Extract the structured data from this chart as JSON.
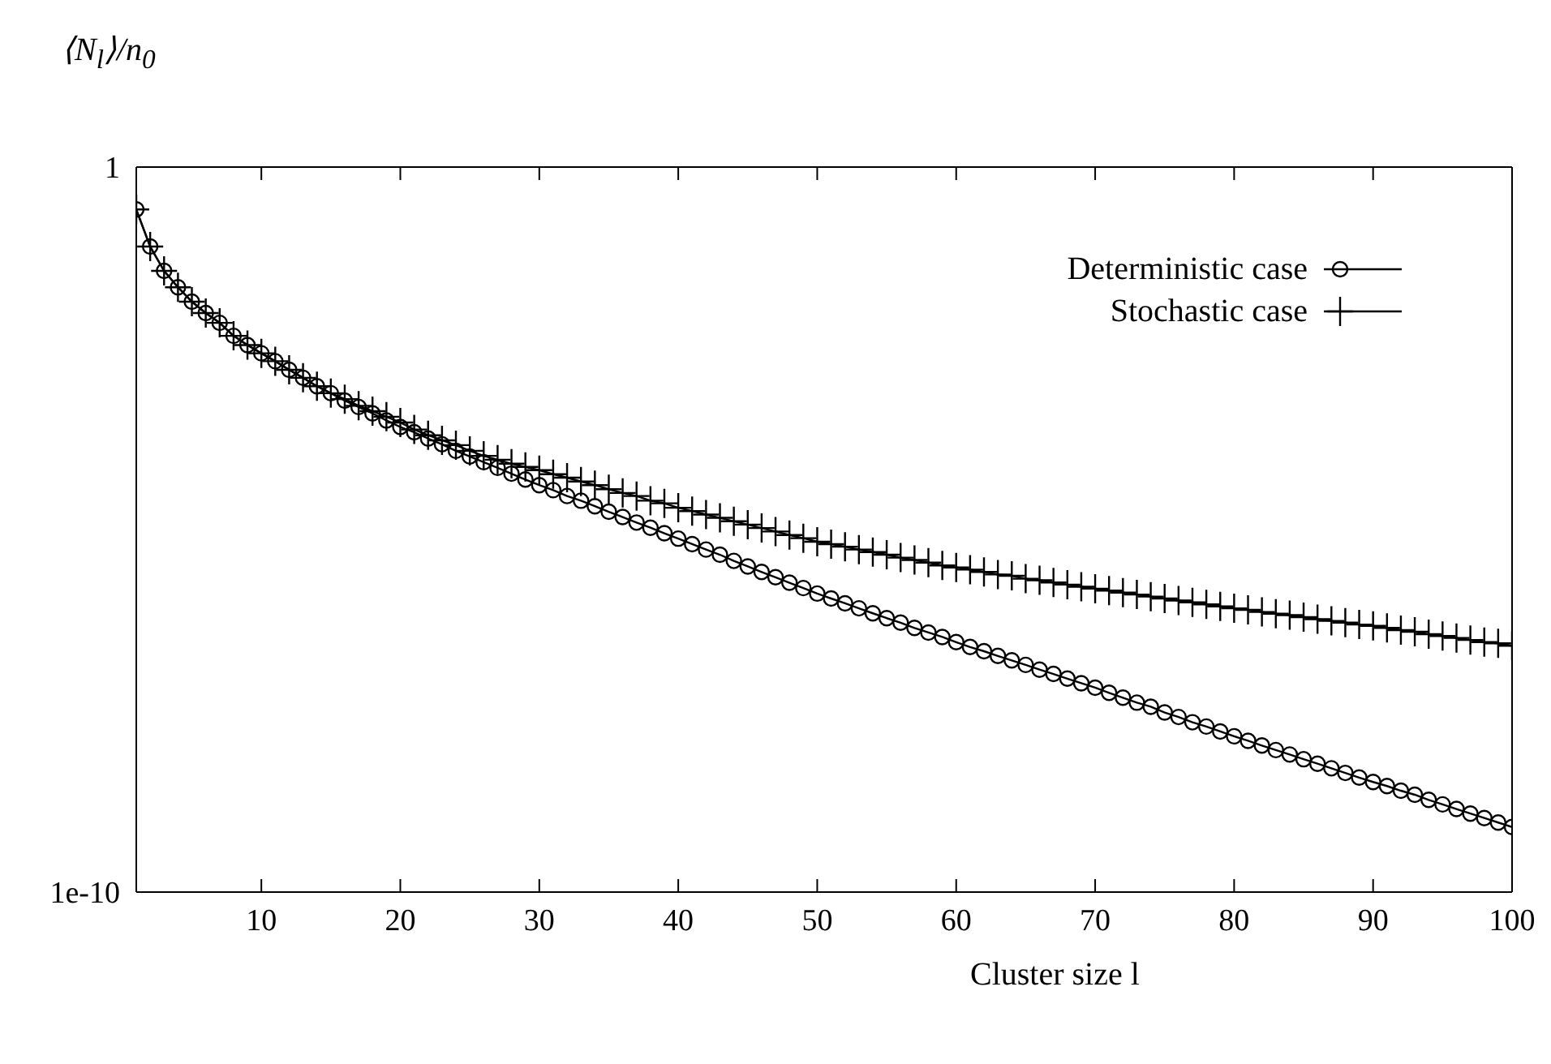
{
  "chart_data": {
    "type": "line",
    "xlabel": "Cluster size l",
    "ylabel": "⟨N$_{l}$⟩/n$_{0}$",
    "log": "y",
    "grid": false,
    "legend": "top right",
    "line_style": "solid",
    "x": [
      1,
      2,
      3,
      4,
      5,
      6,
      7,
      8,
      9,
      10,
      11,
      12,
      13,
      14,
      15,
      16,
      17,
      18,
      19,
      20,
      21,
      22,
      23,
      24,
      25,
      26,
      27,
      28,
      29,
      30,
      31,
      32,
      33,
      34,
      35,
      36,
      37,
      38,
      39,
      40,
      41,
      42,
      43,
      44,
      45,
      46,
      47,
      48,
      49,
      50,
      51,
      52,
      53,
      54,
      55,
      56,
      57,
      58,
      59,
      60,
      61,
      62,
      63,
      64,
      65,
      66,
      67,
      68,
      69,
      70,
      71,
      72,
      73,
      74,
      75,
      76,
      77,
      78,
      79,
      80,
      81,
      82,
      83,
      84,
      85,
      86,
      87,
      88,
      89,
      90,
      91,
      92,
      93,
      94,
      95,
      96,
      97,
      98,
      99,
      100
    ],
    "xlim": [
      1,
      100
    ],
    "xticks": [
      10,
      20,
      30,
      40,
      50,
      60,
      70,
      80,
      90,
      100
    ],
    "ylim": [
      1e-10,
      1
    ],
    "yticks": [
      1e-10,
      1
    ],
    "series": [
      {
        "name": "Deterministic case",
        "color": "#000000",
        "marker": "circle",
        "values": [
          0.26,
          0.08,
          0.037,
          0.022,
          0.0139,
          0.0097,
          0.0071,
          0.0047,
          0.0035,
          0.0027,
          0.0021,
          0.0016,
          0.00124,
          0.00095,
          0.00076,
          0.0006,
          0.00049,
          0.0004,
          0.00032,
          0.00026,
          0.00022,
          0.00018,
          0.00015,
          0.000122,
          0.000102,
          8.5e-05,
          7.1e-05,
          5.9e-05,
          4.9e-05,
          4.1e-05,
          3.5e-05,
          2.9e-05,
          2.5e-05,
          2.1e-05,
          1.76e-05,
          1.49e-05,
          1.25e-05,
          1.06e-05,
          8.9e-06,
          7.5e-06,
          6.3e-06,
          5.3e-06,
          4.5e-06,
          3.7e-06,
          3.1e-06,
          2.6e-06,
          2.2e-06,
          1.85e-06,
          1.56e-06,
          1.31e-06,
          1.12e-06,
          9.6e-07,
          8.2e-07,
          7e-07,
          6e-07,
          5.2e-07,
          4.4e-07,
          3.8e-07,
          3.3e-07,
          2.8e-07,
          2.4e-07,
          2.1e-07,
          1.81e-07,
          1.57e-07,
          1.36e-07,
          1.17e-07,
          1.02e-07,
          8.8e-08,
          7.6e-08,
          6.6e-08,
          5.6e-08,
          4.8e-08,
          4.1e-08,
          3.6e-08,
          3e-08,
          2.6e-08,
          2.2e-08,
          1.92e-08,
          1.64e-08,
          1.41e-08,
          1.22e-08,
          1.05e-08,
          9.1e-09,
          7.9e-09,
          6.8e-09,
          5.9e-09,
          5.1e-09,
          4.4e-09,
          3.8e-09,
          3.3e-09,
          2.9e-09,
          2.5e-09,
          2.2e-09,
          1.87e-09,
          1.62e-09,
          1.4e-09,
          1.21e-09,
          1.05e-09,
          9.1e-10,
          7.9e-10
        ]
      },
      {
        "name": "Stochastic case",
        "color": "#000000",
        "marker": "cross",
        "values": [
          0.26,
          0.08,
          0.037,
          0.022,
          0.0139,
          0.0097,
          0.0071,
          0.0047,
          0.0035,
          0.0027,
          0.0021,
          0.0016,
          0.00124,
          0.00095,
          0.00076,
          0.00063,
          0.00051,
          0.00043,
          0.00036,
          0.0003,
          0.00024,
          0.0002,
          0.00017,
          0.000146,
          0.000122,
          0.000104,
          9.2e-05,
          8.1e-05,
          7.3e-05,
          6.6e-05,
          5.8e-05,
          5.2e-05,
          4.6e-05,
          4.1e-05,
          3.6e-05,
          3.2e-05,
          2.9e-05,
          2.5e-05,
          2.3e-05,
          2e-05,
          1.8e-05,
          1.61e-05,
          1.45e-05,
          1.3e-05,
          1.17e-05,
          1.05e-05,
          9.4e-06,
          8.4e-06,
          7.6e-06,
          6.8e-06,
          6.3e-06,
          5.8e-06,
          5.3e-06,
          4.9e-06,
          4.5e-06,
          4.1e-06,
          3.8e-06,
          3.5e-06,
          3.2e-06,
          3e-06,
          2.8e-06,
          2.6e-06,
          2.4e-06,
          2.3e-06,
          2.1e-06,
          2e-06,
          1.86e-06,
          1.74e-06,
          1.63e-06,
          1.53e-06,
          1.44e-06,
          1.35e-06,
          1.27e-06,
          1.19e-06,
          1.12e-06,
          1.05e-06,
          9.9e-07,
          9.3e-07,
          8.7e-07,
          8.2e-07,
          7.8e-07,
          7.3e-07,
          6.9e-07,
          6.6e-07,
          6.2e-07,
          5.8e-07,
          5.5e-07,
          5.2e-07,
          4.9e-07,
          4.7e-07,
          4.4e-07,
          4.1e-07,
          3.9e-07,
          3.6e-07,
          3.4e-07,
          3.2e-07,
          3e-07,
          2.8e-07,
          2.7e-07,
          2.5e-07
        ]
      }
    ]
  }
}
